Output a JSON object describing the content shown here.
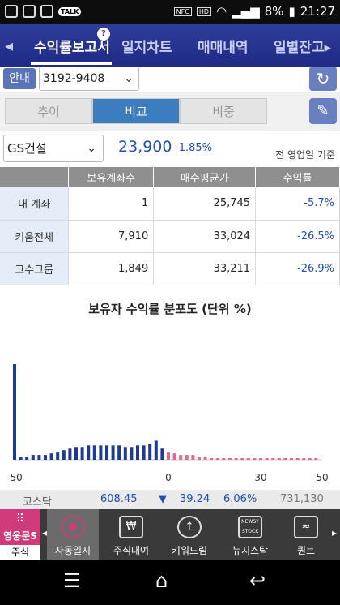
{
  "status": {
    "battery": "8%",
    "time": "21:27",
    "talk": "TALK",
    "nfc": "NFC",
    "hd": "HD"
  },
  "tabs": {
    "active": "수익률보고서",
    "t2": "일지차트",
    "t3": "매매내역",
    "t4": "일별잔고▸",
    "badge": "?"
  },
  "account": {
    "guide": "안내",
    "number": "3192-9408"
  },
  "segments": {
    "s1": "추이",
    "s2": "비교",
    "s3": "비중"
  },
  "stock": {
    "name": "GS건설",
    "price": "23,900",
    "change": "-1.85%",
    "basis": "전 영업일 기준"
  },
  "table": {
    "headers": [
      "",
      "보유계좌수",
      "매수평균가",
      "수익률"
    ],
    "rows": [
      {
        "label": "내 계좌",
        "count": "1",
        "avg": "25,745",
        "rate": "-5.7%"
      },
      {
        "label": "키움전체",
        "count": "7,910",
        "avg": "33,024",
        "rate": "-26.5%"
      },
      {
        "label": "고수그룹",
        "count": "1,849",
        "avg": "33,211",
        "rate": "-26.9%"
      }
    ]
  },
  "chart_data": {
    "type": "bar",
    "title": "보유자 수익률 분포도 (단위 %)",
    "x_ticks": [
      "-50",
      "0",
      "30",
      "50"
    ],
    "x_range": [
      -50,
      50
    ],
    "colors": {
      "loss": "#1f3a93",
      "gain": "#e06a8f"
    },
    "x": [
      -50,
      -48,
      -46,
      -44,
      -42,
      -40,
      -38,
      -36,
      -34,
      -32,
      -30,
      -28,
      -26,
      -24,
      -22,
      -20,
      -18,
      -16,
      -14,
      -12,
      -10,
      -8,
      -6,
      -4,
      -2,
      0,
      2,
      4,
      6,
      8,
      10,
      12,
      14,
      16,
      18,
      20,
      22,
      24,
      26,
      28,
      30,
      32,
      34,
      36,
      38,
      40,
      42,
      44,
      46,
      48
    ],
    "values": [
      60,
      2,
      2,
      3,
      3,
      3,
      4,
      5,
      6,
      7,
      8,
      8,
      9,
      9,
      9,
      9,
      9,
      9,
      8,
      8,
      9,
      9,
      10,
      12,
      7,
      5,
      4,
      3,
      3,
      3,
      2,
      2,
      1,
      1,
      1,
      1,
      1,
      1,
      1,
      1,
      1,
      1,
      1,
      1,
      1,
      1,
      1,
      1,
      1,
      1
    ]
  },
  "index": {
    "name": "코스닥",
    "value": "608.45",
    "arrow": "▼",
    "diff": "39.24",
    "pct": "6.06%",
    "volume": "731,130"
  },
  "bottom": {
    "brand": "영웅문S",
    "sub": "주식",
    "b1": "자동일지",
    "b2": "주식대여",
    "b3": "키워드림",
    "b4": "뉴지스탁",
    "b5": "퀀트",
    "newsy": "NEWSY STOCK"
  }
}
